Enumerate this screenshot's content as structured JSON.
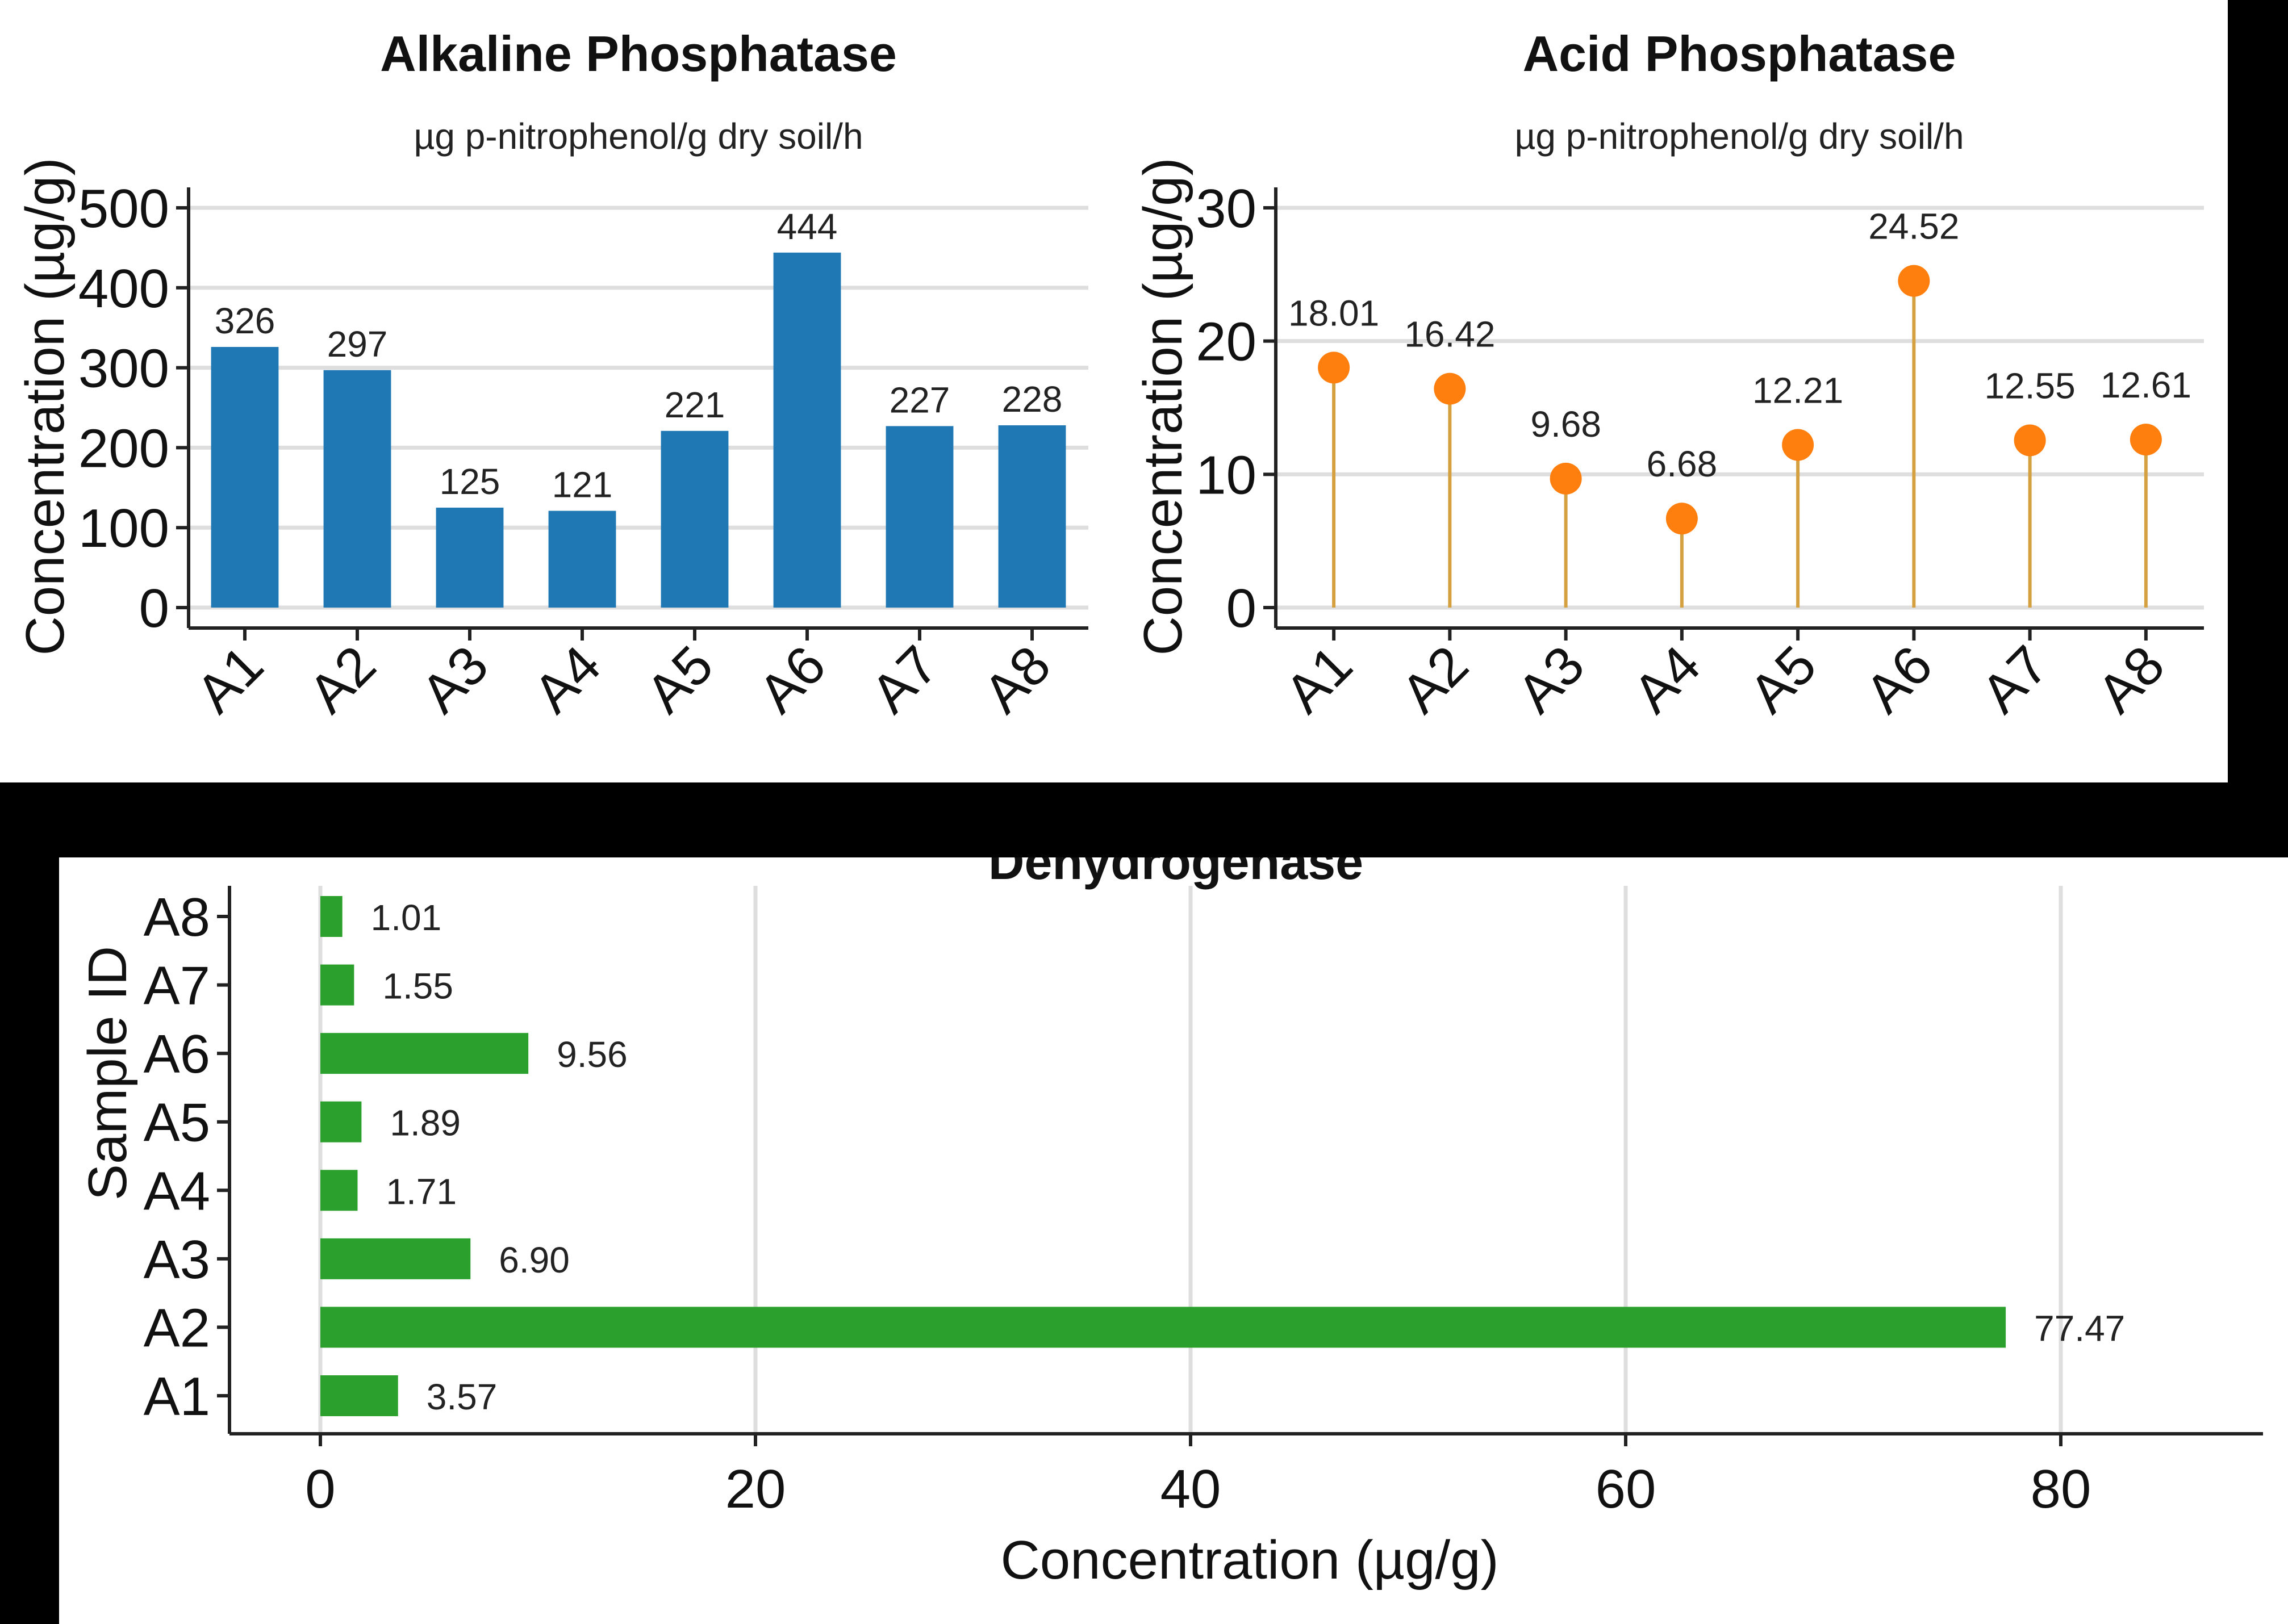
{
  "colors": {
    "alkaline_bar": "#1f77b4",
    "acid_point": "#ff7f0e",
    "acid_stem": "#d4a040",
    "dehydrogenase_bar": "#2ca02c",
    "background": "#000000",
    "panel": "#ffffff"
  },
  "chart_data": [
    {
      "id": "alkaline",
      "type": "bar",
      "title": "Alkaline Phosphatase",
      "subtitle": "µg p-nitrophenol/g dry soil/h",
      "xlabel": "",
      "ylabel": "Concentration (µg/g)",
      "categories": [
        "A1",
        "A2",
        "A3",
        "A4",
        "A5",
        "A6",
        "A7",
        "A8"
      ],
      "values": [
        326,
        297,
        125,
        121,
        221,
        444,
        227,
        228
      ],
      "data_labels": [
        "326",
        "297",
        "125",
        "121",
        "221",
        "444",
        "227",
        "228"
      ],
      "ylim": [
        0,
        500
      ],
      "yticks": [
        0,
        100,
        200,
        300,
        400,
        500
      ],
      "ytick_labels": [
        "0",
        "100",
        "200",
        "300",
        "400",
        "500"
      ],
      "grid": "horizontal"
    },
    {
      "id": "acid",
      "type": "lollipop",
      "title": "Acid Phosphatase",
      "subtitle": "µg p-nitrophenol/g dry soil/h",
      "xlabel": "",
      "ylabel": "Concentration (µg/g)",
      "categories": [
        "A1",
        "A2",
        "A3",
        "A4",
        "A5",
        "A6",
        "A7",
        "A8"
      ],
      "values": [
        18.01,
        16.42,
        9.68,
        6.68,
        12.21,
        24.52,
        12.55,
        12.61
      ],
      "data_labels": [
        "18.01",
        "16.42",
        "9.68",
        "6.68",
        "12.21",
        "24.52",
        "12.55",
        "12.61"
      ],
      "ylim": [
        0,
        30
      ],
      "yticks": [
        0,
        10,
        20,
        30
      ],
      "ytick_labels": [
        "0",
        "10",
        "20",
        "30"
      ],
      "grid": "horizontal"
    },
    {
      "id": "dehydrogenase",
      "type": "bar",
      "orientation": "horizontal",
      "title": "Dehydrogenase",
      "xlabel": "Concentration (µg/g)",
      "ylabel": "Sample ID",
      "categories": [
        "A1",
        "A2",
        "A3",
        "A4",
        "A5",
        "A6",
        "A7",
        "A8"
      ],
      "values": [
        3.57,
        77.47,
        6.9,
        1.71,
        1.89,
        9.56,
        1.55,
        1.01
      ],
      "data_labels": [
        "3.57",
        "77.47",
        "6.90",
        "1.71",
        "1.89",
        "9.56",
        "1.55",
        "1.01"
      ],
      "xlim": [
        0,
        88
      ],
      "xticks": [
        0,
        20,
        40,
        60,
        80
      ],
      "xtick_labels": [
        "0",
        "20",
        "40",
        "60",
        "80"
      ],
      "grid": "vertical"
    }
  ]
}
